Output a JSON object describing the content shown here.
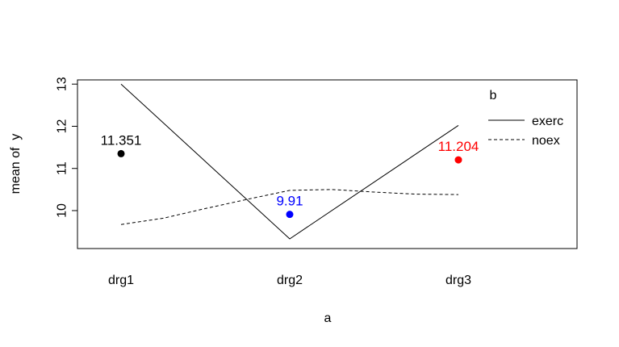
{
  "chart_data": {
    "type": "line",
    "xlabel": "a",
    "ylabel": "mean of  y",
    "categories": [
      "drg1",
      "drg2",
      "drg3"
    ],
    "ylim": [
      9.1,
      13.1
    ],
    "yticks": [
      10,
      11,
      12,
      13
    ],
    "grid": false,
    "legend": {
      "title": "b",
      "position": "top-right",
      "entries": [
        {
          "name": "exerc",
          "style": "solid"
        },
        {
          "name": "noex",
          "style": "dashed"
        }
      ]
    },
    "series": [
      {
        "name": "exerc",
        "style": "solid",
        "color": "#000000",
        "points": [
          {
            "x": 1,
            "y": 13.0
          },
          {
            "x": 2,
            "y": 9.33
          },
          {
            "x": 3,
            "y": 12.02
          }
        ]
      },
      {
        "name": "noex",
        "style": "dashed",
        "color": "#000000",
        "points": [
          {
            "x": 1.0,
            "y": 9.67
          },
          {
            "x": 1.25,
            "y": 9.82
          },
          {
            "x": 1.5,
            "y": 10.05
          },
          {
            "x": 1.75,
            "y": 10.27
          },
          {
            "x": 2.0,
            "y": 10.48
          },
          {
            "x": 2.25,
            "y": 10.5
          },
          {
            "x": 2.5,
            "y": 10.44
          },
          {
            "x": 2.75,
            "y": 10.39
          },
          {
            "x": 3.0,
            "y": 10.38
          }
        ]
      }
    ],
    "markers": [
      {
        "category": "drg1",
        "value": 11.351,
        "label": "11.351",
        "color": "#000000"
      },
      {
        "category": "drg2",
        "value": 9.91,
        "label": "9.91",
        "color": "#0000ff"
      },
      {
        "category": "drg3",
        "value": 11.204,
        "label": "11.204",
        "color": "#ff0000"
      }
    ]
  }
}
